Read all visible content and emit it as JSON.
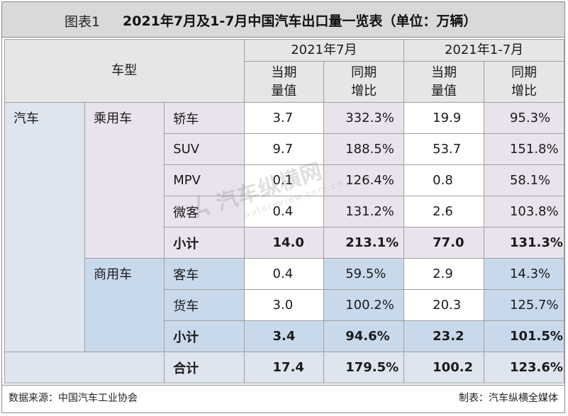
{
  "title": {
    "label": "图表1",
    "text": "2021年7月及1-7月中国汽车出口量一览表（单位：万辆）"
  },
  "header": {
    "vehicle_type": "车型",
    "period_month": "2021年7月",
    "period_ytd": "2021年1-7月",
    "volume_line1": "当期",
    "volume_line2": "量值",
    "yoy_line1": "同期",
    "yoy_line2": "增比"
  },
  "groups": {
    "car": "汽车",
    "passenger": "乘用车",
    "commercial": "商用车"
  },
  "rows": [
    {
      "name": "轿车",
      "jul_volume": "3.7",
      "jul_yoy": "332.3%",
      "ytd_volume": "19.9",
      "ytd_yoy": "95.3%"
    },
    {
      "name": "SUV",
      "jul_volume": "9.7",
      "jul_yoy": "188.5%",
      "ytd_volume": "53.7",
      "ytd_yoy": "151.8%"
    },
    {
      "name": "MPV",
      "jul_volume": "0.1",
      "jul_yoy": "126.4%",
      "ytd_volume": "0.8",
      "ytd_yoy": "58.1%"
    },
    {
      "name": "微客",
      "jul_volume": "0.4",
      "jul_yoy": "131.2%",
      "ytd_volume": "2.6",
      "ytd_yoy": "103.8%"
    },
    {
      "name": "小计",
      "jul_volume": "14.0",
      "jul_yoy": "213.1%",
      "ytd_volume": "77.0",
      "ytd_yoy": "131.3%"
    },
    {
      "name": "客车",
      "jul_volume": "0.4",
      "jul_yoy": "59.5%",
      "ytd_volume": "2.9",
      "ytd_yoy": "14.3%"
    },
    {
      "name": "货车",
      "jul_volume": "3.0",
      "jul_yoy": "100.2%",
      "ytd_volume": "20.3",
      "ytd_yoy": "125.7%"
    },
    {
      "name": "小计",
      "jul_volume": "3.4",
      "jul_yoy": "94.6%",
      "ytd_volume": "23.2",
      "ytd_yoy": "101.5%"
    },
    {
      "name": "合计",
      "jul_volume": "17.4",
      "jul_yoy": "179.5%",
      "ytd_volume": "100.2",
      "ytd_yoy": "123.6%"
    }
  ],
  "footer": {
    "source": "数据来源：中国汽车工业协会",
    "maker": "制表：汽车纵横全媒体"
  },
  "watermark": {
    "main": "汽车纵横网",
    "sub": "autoreview.com.cn"
  },
  "colors": {
    "title_bg": "#d9d9d9",
    "header_bg": "#e6e6e6",
    "car_bg": "#dfe5ee",
    "passenger_bg": "#e9e3ee",
    "commercial_bg": "#c9d9ec"
  }
}
